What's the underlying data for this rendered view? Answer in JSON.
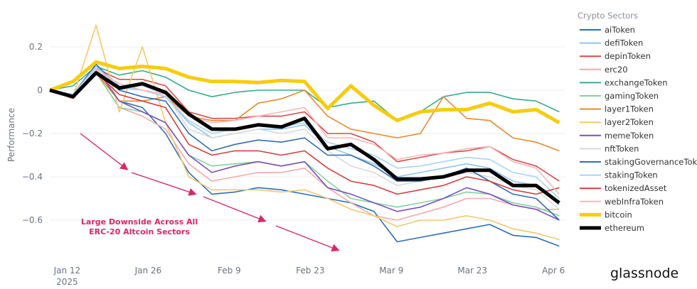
{
  "chart_data": {
    "type": "line",
    "title": "",
    "xlabel": "",
    "ylabel": "Performance",
    "ylim": [
      -0.75,
      0.35
    ],
    "yticks": [
      "0.2",
      "0",
      "−0.2",
      "−0.4",
      "−0.6"
    ],
    "ytick_values": [
      0.2,
      0,
      -0.2,
      -0.4,
      -0.6
    ],
    "xticks": [
      {
        "label": "Jan 12",
        "sublabel": "2025",
        "date": "2025-01-12"
      },
      {
        "label": "Jan 26",
        "date": "2025-01-26"
      },
      {
        "label": "Feb 9",
        "date": "2025-02-09"
      },
      {
        "label": "Feb 23",
        "date": "2025-02-23"
      },
      {
        "label": "Mar 9",
        "date": "2025-03-09"
      },
      {
        "label": "Mar 23",
        "date": "2025-03-23"
      },
      {
        "label": "Apr 6",
        "date": "2025-04-06"
      }
    ],
    "grid": true,
    "legend_title": "Crypto Sectors",
    "legend_placement": "right",
    "x": [
      "2025-01-09",
      "2025-01-13",
      "2025-01-17",
      "2025-01-21",
      "2025-01-25",
      "2025-01-29",
      "2025-02-02",
      "2025-02-06",
      "2025-02-10",
      "2025-02-14",
      "2025-02-18",
      "2025-02-22",
      "2025-02-26",
      "2025-03-02",
      "2025-03-06",
      "2025-03-10",
      "2025-03-14",
      "2025-03-18",
      "2025-03-22",
      "2025-03-26",
      "2025-03-30",
      "2025-04-03",
      "2025-04-07"
    ],
    "series": [
      {
        "name": "aiToken",
        "color": "#2a6fb8",
        "values": [
          0,
          -0.02,
          0.1,
          -0.05,
          -0.08,
          -0.2,
          -0.38,
          -0.48,
          -0.47,
          -0.45,
          -0.46,
          -0.48,
          -0.5,
          -0.52,
          -0.56,
          -0.7,
          -0.68,
          -0.66,
          -0.64,
          -0.62,
          -0.67,
          -0.68,
          -0.72
        ]
      },
      {
        "name": "defiToken",
        "color": "#8ec5ef",
        "values": [
          0,
          -0.02,
          0.12,
          0.02,
          0.0,
          -0.03,
          -0.15,
          -0.22,
          -0.2,
          -0.18,
          -0.18,
          -0.16,
          -0.26,
          -0.3,
          -0.34,
          -0.4,
          -0.38,
          -0.36,
          -0.34,
          -0.36,
          -0.42,
          -0.44,
          -0.53
        ]
      },
      {
        "name": "depinToken",
        "color": "#d94a4a",
        "values": [
          0,
          -0.03,
          0.1,
          0.05,
          0.05,
          0.02,
          -0.1,
          -0.13,
          -0.13,
          -0.12,
          -0.12,
          -0.1,
          -0.2,
          -0.2,
          -0.24,
          -0.33,
          -0.31,
          -0.29,
          -0.28,
          -0.26,
          -0.32,
          -0.35,
          -0.42
        ]
      },
      {
        "name": "erc20",
        "color": "#f2a9a9",
        "values": [
          0,
          -0.04,
          0.08,
          -0.08,
          -0.12,
          -0.18,
          -0.34,
          -0.42,
          -0.4,
          -0.38,
          -0.38,
          -0.36,
          -0.45,
          -0.52,
          -0.58,
          -0.6,
          -0.57,
          -0.54,
          -0.5,
          -0.5,
          -0.53,
          -0.55,
          -0.55
        ]
      },
      {
        "name": "exchangeToken",
        "color": "#3aaa8c",
        "values": [
          0,
          0.02,
          0.11,
          0.07,
          0.09,
          0.06,
          0.0,
          -0.03,
          -0.01,
          0.0,
          0.0,
          0.0,
          -0.08,
          -0.06,
          -0.05,
          -0.14,
          -0.1,
          -0.03,
          -0.01,
          -0.01,
          -0.04,
          -0.05,
          -0.1
        ]
      },
      {
        "name": "gamingToken",
        "color": "#7fd3a0",
        "values": [
          0,
          -0.03,
          0.08,
          -0.08,
          -0.1,
          -0.15,
          -0.3,
          -0.35,
          -0.34,
          -0.33,
          -0.35,
          -0.33,
          -0.42,
          -0.5,
          -0.52,
          -0.54,
          -0.52,
          -0.5,
          -0.47,
          -0.48,
          -0.52,
          -0.54,
          -0.58
        ]
      },
      {
        "name": "layer1Token",
        "color": "#e8892c",
        "values": [
          0,
          -0.02,
          0.08,
          -0.05,
          -0.05,
          -0.03,
          -0.12,
          -0.14,
          -0.14,
          -0.06,
          -0.04,
          0.0,
          -0.12,
          -0.18,
          -0.2,
          -0.22,
          -0.2,
          -0.03,
          -0.13,
          -0.14,
          -0.22,
          -0.24,
          -0.28
        ]
      },
      {
        "name": "layer2Token",
        "color": "#f5c76a",
        "values": [
          0,
          -0.03,
          0.3,
          -0.1,
          0.2,
          -0.15,
          -0.4,
          -0.46,
          -0.46,
          -0.46,
          -0.47,
          -0.46,
          -0.5,
          -0.55,
          -0.58,
          -0.63,
          -0.6,
          -0.6,
          -0.58,
          -0.6,
          -0.64,
          -0.66,
          -0.69
        ]
      },
      {
        "name": "memeToken",
        "color": "#7b4fc0",
        "values": [
          0,
          -0.03,
          0.1,
          -0.05,
          -0.1,
          -0.15,
          -0.3,
          -0.38,
          -0.35,
          -0.33,
          -0.35,
          -0.33,
          -0.45,
          -0.48,
          -0.52,
          -0.56,
          -0.54,
          -0.5,
          -0.45,
          -0.48,
          -0.53,
          -0.55,
          -0.6
        ]
      },
      {
        "name": "nftToken",
        "color": "#d9d9de",
        "values": [
          0,
          -0.02,
          0.1,
          0.0,
          0.02,
          -0.02,
          -0.18,
          -0.22,
          -0.2,
          -0.18,
          -0.2,
          -0.18,
          -0.28,
          -0.35,
          -0.38,
          -0.44,
          -0.42,
          -0.4,
          -0.38,
          -0.4,
          -0.44,
          -0.46,
          -0.55
        ]
      },
      {
        "name": "stakingGovernanceToken",
        "color": "#2f6db5",
        "values": [
          0,
          -0.02,
          0.12,
          0.0,
          -0.03,
          -0.05,
          -0.2,
          -0.28,
          -0.25,
          -0.23,
          -0.24,
          -0.22,
          -0.3,
          -0.3,
          -0.35,
          -0.42,
          -0.42,
          -0.4,
          -0.36,
          -0.42,
          -0.48,
          -0.5,
          -0.6
        ]
      },
      {
        "name": "stakingToken",
        "color": "#a8d4f2",
        "values": [
          0,
          -0.02,
          0.11,
          0.01,
          0.0,
          -0.03,
          -0.14,
          -0.2,
          -0.18,
          -0.16,
          -0.17,
          -0.15,
          -0.24,
          -0.27,
          -0.3,
          -0.36,
          -0.35,
          -0.33,
          -0.31,
          -0.32,
          -0.38,
          -0.4,
          -0.5
        ]
      },
      {
        "name": "tokenizedAsset",
        "color": "#d63f3f",
        "values": [
          0,
          -0.03,
          0.08,
          -0.02,
          -0.05,
          -0.08,
          -0.25,
          -0.3,
          -0.28,
          -0.28,
          -0.3,
          -0.28,
          -0.36,
          -0.42,
          -0.44,
          -0.48,
          -0.46,
          -0.44,
          -0.4,
          -0.42,
          -0.46,
          -0.48,
          -0.45
        ]
      },
      {
        "name": "webInfraToken",
        "color": "#f4b8b8",
        "values": [
          0,
          -0.03,
          0.09,
          0.03,
          0.0,
          -0.02,
          -0.12,
          -0.15,
          -0.14,
          -0.12,
          -0.1,
          -0.08,
          -0.22,
          -0.22,
          -0.25,
          -0.32,
          -0.3,
          -0.29,
          -0.27,
          -0.26,
          -0.33,
          -0.36,
          -0.48
        ]
      },
      {
        "name": "bitcoin",
        "color": "#f7cc0e",
        "bold": true,
        "values": [
          0,
          0.04,
          0.13,
          0.1,
          0.11,
          0.1,
          0.06,
          0.04,
          0.04,
          0.035,
          0.045,
          0.04,
          -0.085,
          0.02,
          -0.07,
          -0.14,
          -0.1,
          -0.09,
          -0.09,
          -0.06,
          -0.1,
          -0.09,
          -0.15
        ]
      },
      {
        "name": "ethereum",
        "color": "#000000",
        "bold": true,
        "values": [
          0,
          -0.03,
          0.08,
          0.01,
          0.03,
          -0.01,
          -0.11,
          -0.18,
          -0.18,
          -0.16,
          -0.17,
          -0.13,
          -0.27,
          -0.25,
          -0.32,
          -0.41,
          -0.41,
          -0.4,
          -0.37,
          -0.37,
          -0.44,
          -0.44,
          -0.52
        ]
      }
    ],
    "annotation": {
      "line1": "Large Downside Across All",
      "line2": "ERC-20 Altcoin Sectors",
      "color": "#d6286b"
    }
  },
  "brand": {
    "logo_text": "glassnode"
  }
}
